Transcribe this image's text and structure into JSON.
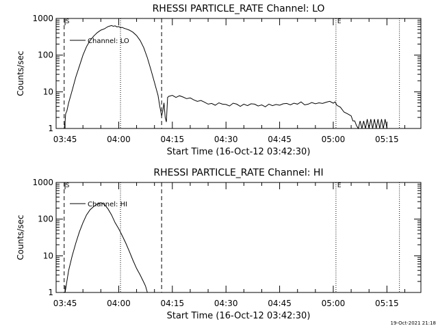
{
  "footer_stamp": "19-Oct-2021 21:18",
  "chart_data": [
    {
      "type": "line",
      "title": "RHESSI PARTICLE_RATE Channel: LO",
      "xlabel": "Start Time (16-Oct-12 03:42:30)",
      "ylabel": "Counts/sec",
      "y_scale": "log",
      "ylim": [
        1,
        1000
      ],
      "xlim": [
        "03:42:30",
        "05:24:30"
      ],
      "x_ticks": [
        "03:45",
        "04:00",
        "04:15",
        "04:30",
        "04:45",
        "05:00",
        "05:15"
      ],
      "y_ticks": [
        "1",
        "10",
        "100",
        "1000"
      ],
      "legend": {
        "position": "top-left",
        "entries": [
          "Channel: LO"
        ]
      },
      "markers": {
        "dashed": [
          "03:44:45",
          "04:12:00"
        ],
        "dotted": [
          "04:00:30",
          "05:00:45",
          "05:18:30"
        ],
        "labels": [
          {
            "text": "S",
            "time": "03:44:45"
          },
          {
            "text": "E",
            "time": "05:00:45"
          }
        ]
      },
      "series": [
        {
          "name": "Channel: LO",
          "x": [
            "03:44:45",
            "03:45:00",
            "03:45:10",
            "03:45:30",
            "03:46:00",
            "03:47:00",
            "03:48:00",
            "03:49:00",
            "03:50:00",
            "03:51:00",
            "03:52:00",
            "03:53:00",
            "03:54:00",
            "03:55:00",
            "03:56:00",
            "03:56:30",
            "03:57:00",
            "03:57:30",
            "03:58:00",
            "03:58:30",
            "03:59:00",
            "03:59:30",
            "04:00:00",
            "04:00:30",
            "04:01:00",
            "04:01:30",
            "04:02:00",
            "04:03:00",
            "04:04:00",
            "04:05:00",
            "04:06:00",
            "04:07:00",
            "04:08:00",
            "04:09:00",
            "04:10:00",
            "04:10:30",
            "04:11:00",
            "04:11:30",
            "04:12:00",
            "04:12:20",
            "04:12:40",
            "04:13:00",
            "04:13:20",
            "04:13:40",
            "04:14:00",
            "04:15:00",
            "04:16:00",
            "04:17:00",
            "04:18:00",
            "04:19:00",
            "04:20:00",
            "04:21:00",
            "04:22:00",
            "04:23:00",
            "04:24:00",
            "04:25:00",
            "04:26:00",
            "04:27:00",
            "04:28:00",
            "04:29:00",
            "04:30:00",
            "04:31:00",
            "04:32:00",
            "04:33:00",
            "04:34:00",
            "04:35:00",
            "04:36:00",
            "04:37:00",
            "04:38:00",
            "04:39:00",
            "04:40:00",
            "04:41:00",
            "04:42:00",
            "04:43:00",
            "04:44:00",
            "04:45:00",
            "04:46:00",
            "04:47:00",
            "04:48:00",
            "04:49:00",
            "04:50:00",
            "04:51:00",
            "04:52:00",
            "04:53:00",
            "04:54:00",
            "04:55:00",
            "04:56:00",
            "04:57:00",
            "04:58:00",
            "04:59:00",
            "05:00:00",
            "05:00:30",
            "05:01:00",
            "05:02:00",
            "05:03:00",
            "05:04:00",
            "05:05:00",
            "05:05:30",
            "05:06:00",
            "05:06:30",
            "05:07:00",
            "05:07:30",
            "05:08:00",
            "05:08:30",
            "05:09:00",
            "05:09:30",
            "05:10:00",
            "05:10:30",
            "05:11:00",
            "05:11:30",
            "05:12:00",
            "05:12:30",
            "05:13:00",
            "05:13:30",
            "05:14:00",
            "05:14:30",
            "05:15:00"
          ],
          "y": [
            1,
            1.5,
            2.5,
            3,
            5,
            11,
            25,
            50,
            100,
            170,
            250,
            330,
            410,
            480,
            520,
            560,
            600,
            620,
            640,
            610,
            630,
            590,
            600,
            560,
            570,
            540,
            520,
            480,
            420,
            340,
            250,
            160,
            85,
            40,
            18,
            12,
            8,
            4,
            2.2,
            3,
            5,
            2,
            1.5,
            7,
            7.5,
            8,
            7,
            7.8,
            7.2,
            6.5,
            6.8,
            6,
            5.5,
            5.8,
            5.2,
            4.6,
            4.8,
            4.3,
            5,
            4.6,
            4.5,
            4.1,
            4.9,
            4.6,
            4,
            4.6,
            4.2,
            4.7,
            4.6,
            4.1,
            4.4,
            3.9,
            4.6,
            4.2,
            4.5,
            4.3,
            4.7,
            4.8,
            4.4,
            4.9,
            4.6,
            5.3,
            4.4,
            4.6,
            5.1,
            4.7,
            5,
            4.8,
            5.2,
            5.5,
            4.9,
            5.3,
            4.3,
            3.8,
            2.8,
            2.5,
            2.2,
            1.6,
            1.6,
            1.2,
            1,
            1.6,
            1,
            1.6,
            1,
            1.8,
            1,
            1.8,
            1,
            1.8,
            1,
            1.8,
            1,
            1.8,
            1,
            1.8,
            1
          ]
        }
      ]
    },
    {
      "type": "line",
      "title": "RHESSI PARTICLE_RATE Channel: HI",
      "xlabel": "Start Time (16-Oct-12 03:42:30)",
      "ylabel": "Counts/sec",
      "y_scale": "log",
      "ylim": [
        1,
        1000
      ],
      "xlim": [
        "03:42:30",
        "05:24:30"
      ],
      "x_ticks": [
        "03:45",
        "04:00",
        "04:15",
        "04:30",
        "04:45",
        "05:00",
        "05:15"
      ],
      "y_ticks": [
        "1",
        "10",
        "100",
        "1000"
      ],
      "legend": {
        "position": "top-left",
        "entries": [
          "Channel: HI"
        ]
      },
      "markers": {
        "dashed": [
          "03:44:45",
          "04:12:00"
        ],
        "dotted": [
          "04:00:30",
          "05:00:45",
          "05:18:30"
        ],
        "labels": [
          {
            "text": "S",
            "time": "03:44:45"
          },
          {
            "text": "E",
            "time": "05:00:45"
          }
        ]
      },
      "series": [
        {
          "name": "Channel: HI",
          "x": [
            "03:45:00",
            "03:45:30",
            "03:46:00",
            "03:47:00",
            "03:48:00",
            "03:49:00",
            "03:50:00",
            "03:51:00",
            "03:52:00",
            "03:53:00",
            "03:54:00",
            "03:55:00",
            "03:56:00",
            "03:57:00",
            "03:58:00",
            "03:59:00",
            "04:00:00",
            "04:01:00",
            "04:02:00",
            "04:03:00",
            "04:04:00",
            "04:05:00",
            "04:06:00",
            "04:07:00",
            "04:07:30",
            "04:08:00"
          ],
          "y": [
            1,
            2,
            4,
            10,
            22,
            45,
            80,
            130,
            180,
            220,
            260,
            280,
            250,
            190,
            130,
            80,
            55,
            35,
            22,
            13,
            7.5,
            4.5,
            3,
            1.9,
            1.5,
            1
          ]
        }
      ]
    }
  ]
}
